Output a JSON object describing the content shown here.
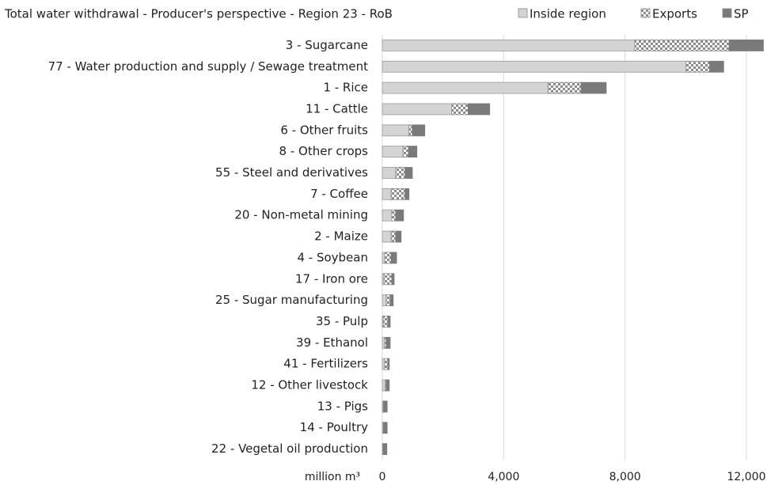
{
  "chart_data": {
    "type": "stacked_barh",
    "title": "Total water withdrawal - Producer's perspective - Region 23 - RoB",
    "x_label": "million m³",
    "categories": [
      "3 - Sugarcane",
      "77 - Water production and supply / Sewage treatment",
      "1 - Rice",
      "11 - Cattle",
      "6 - Other fruits",
      "8 - Other crops",
      "55 - Steel and derivatives",
      "7 - Coffee",
      "20 - Non-metal mining",
      "2 - Maize",
      "4 - Soybean",
      "17 - Iron ore",
      "25 - Sugar manufacturing",
      "35 - Pulp",
      "39 - Ethanol",
      "41 - Fertilizers",
      "12 - Other livestock",
      "13 - Pigs",
      "14 - Poultry",
      "22 - Vegetal oil production"
    ],
    "series": [
      {
        "name": "Inside region",
        "color": "#d4d4d4",
        "values": [
          8320,
          10010,
          5460,
          2290,
          880,
          680,
          440,
          290,
          310,
          290,
          80,
          50,
          130,
          30,
          80,
          80,
          100,
          30,
          30,
          20
        ]
      },
      {
        "name": "Exports",
        "color": "#8c8c8c",
        "pattern": "checkerboard",
        "values": [
          3110,
          780,
          1090,
          540,
          110,
          180,
          310,
          460,
          130,
          150,
          210,
          260,
          130,
          150,
          50,
          100,
          30,
          20,
          20,
          20
        ]
      },
      {
        "name": "SP",
        "color": "#7a7a7a",
        "values": [
          1130,
          460,
          830,
          710,
          410,
          280,
          240,
          130,
          260,
          180,
          180,
          80,
          100,
          80,
          130,
          50,
          100,
          110,
          110,
          110
        ]
      }
    ],
    "xlim": [
      0,
      12600
    ],
    "xticks": [
      0,
      {
        "value": 4000,
        "label": "4,000"
      },
      {
        "value": 8000,
        "label": "8,000"
      },
      {
        "value": 12000,
        "label": "12,000"
      }
    ],
    "grid": true,
    "legend": "top-right"
  }
}
